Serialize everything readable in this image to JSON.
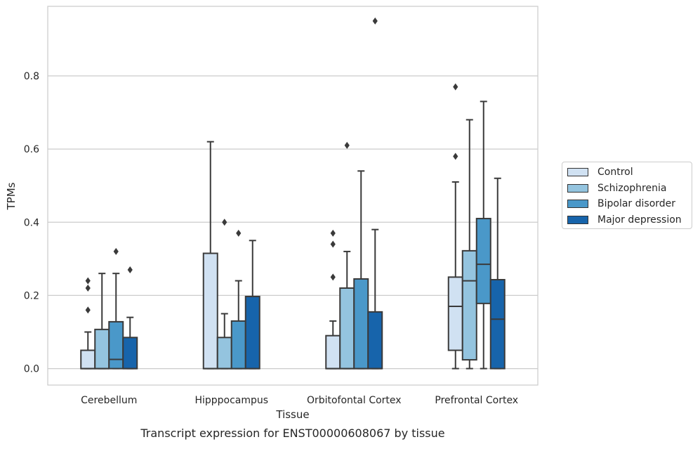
{
  "chart_data": {
    "type": "boxplot",
    "xlabel": "Tissue",
    "ylabel": "TPMs",
    "caption": "Transcript expression for ENST00000608067 by tissue",
    "ylim": [
      -0.045,
      0.99
    ],
    "yticks": [
      "0.0",
      "0.2",
      "0.4",
      "0.6",
      "0.8"
    ],
    "grid": "horizontal",
    "legend_position": "right",
    "categories": [
      "Cerebellum",
      "Hipppocampus",
      "Orbitofontal Cortex",
      "Prefrontal Cortex"
    ],
    "series": [
      {
        "name": "Control",
        "color": "#d0e1f2",
        "boxes": [
          {
            "whislo": 0.0,
            "q1": 0.0,
            "med": 0.0,
            "q3": 0.05,
            "whishi": 0.1,
            "fliers": [
              0.16,
              0.22,
              0.24
            ]
          },
          {
            "whislo": 0.0,
            "q1": 0.0,
            "med": 0.0,
            "q3": 0.315,
            "whishi": 0.62,
            "fliers": []
          },
          {
            "whislo": 0.0,
            "q1": 0.0,
            "med": 0.0,
            "q3": 0.09,
            "whishi": 0.13,
            "fliers": [
              0.25,
              0.34,
              0.37
            ]
          },
          {
            "whislo": 0.0,
            "q1": 0.05,
            "med": 0.17,
            "q3": 0.25,
            "whishi": 0.51,
            "fliers": [
              0.58,
              0.77
            ]
          }
        ]
      },
      {
        "name": "Schizophrenia",
        "color": "#94c4df",
        "boxes": [
          {
            "whislo": 0.0,
            "q1": 0.0,
            "med": 0.0,
            "q3": 0.107,
            "whishi": 0.26,
            "fliers": []
          },
          {
            "whislo": 0.0,
            "q1": 0.0,
            "med": 0.0,
            "q3": 0.085,
            "whishi": 0.15,
            "fliers": [
              0.4
            ]
          },
          {
            "whislo": 0.0,
            "q1": 0.0,
            "med": 0.0,
            "q3": 0.22,
            "whishi": 0.32,
            "fliers": [
              0.61
            ]
          },
          {
            "whislo": 0.0,
            "q1": 0.024,
            "med": 0.24,
            "q3": 0.322,
            "whishi": 0.68,
            "fliers": []
          }
        ]
      },
      {
        "name": "Bipolar disorder",
        "color": "#4a98c9",
        "boxes": [
          {
            "whislo": 0.0,
            "q1": 0.0,
            "med": 0.025,
            "q3": 0.128,
            "whishi": 0.26,
            "fliers": [
              0.32
            ]
          },
          {
            "whislo": 0.0,
            "q1": 0.0,
            "med": 0.0,
            "q3": 0.13,
            "whishi": 0.24,
            "fliers": [
              0.37
            ]
          },
          {
            "whislo": 0.0,
            "q1": 0.0,
            "med": 0.0,
            "q3": 0.245,
            "whishi": 0.54,
            "fliers": []
          },
          {
            "whislo": 0.0,
            "q1": 0.178,
            "med": 0.285,
            "q3": 0.41,
            "whishi": 0.73,
            "fliers": []
          }
        ]
      },
      {
        "name": "Major depression",
        "color": "#1764ab",
        "boxes": [
          {
            "whislo": 0.0,
            "q1": 0.0,
            "med": 0.0,
            "q3": 0.085,
            "whishi": 0.14,
            "fliers": [
              0.27
            ]
          },
          {
            "whislo": 0.0,
            "q1": 0.0,
            "med": 0.0,
            "q3": 0.197,
            "whishi": 0.35,
            "fliers": []
          },
          {
            "whislo": 0.0,
            "q1": 0.0,
            "med": 0.0,
            "q3": 0.155,
            "whishi": 0.38,
            "fliers": [
              0.95
            ]
          },
          {
            "whislo": 0.0,
            "q1": 0.0,
            "med": 0.135,
            "q3": 0.243,
            "whishi": 0.52,
            "fliers": []
          }
        ]
      }
    ]
  }
}
